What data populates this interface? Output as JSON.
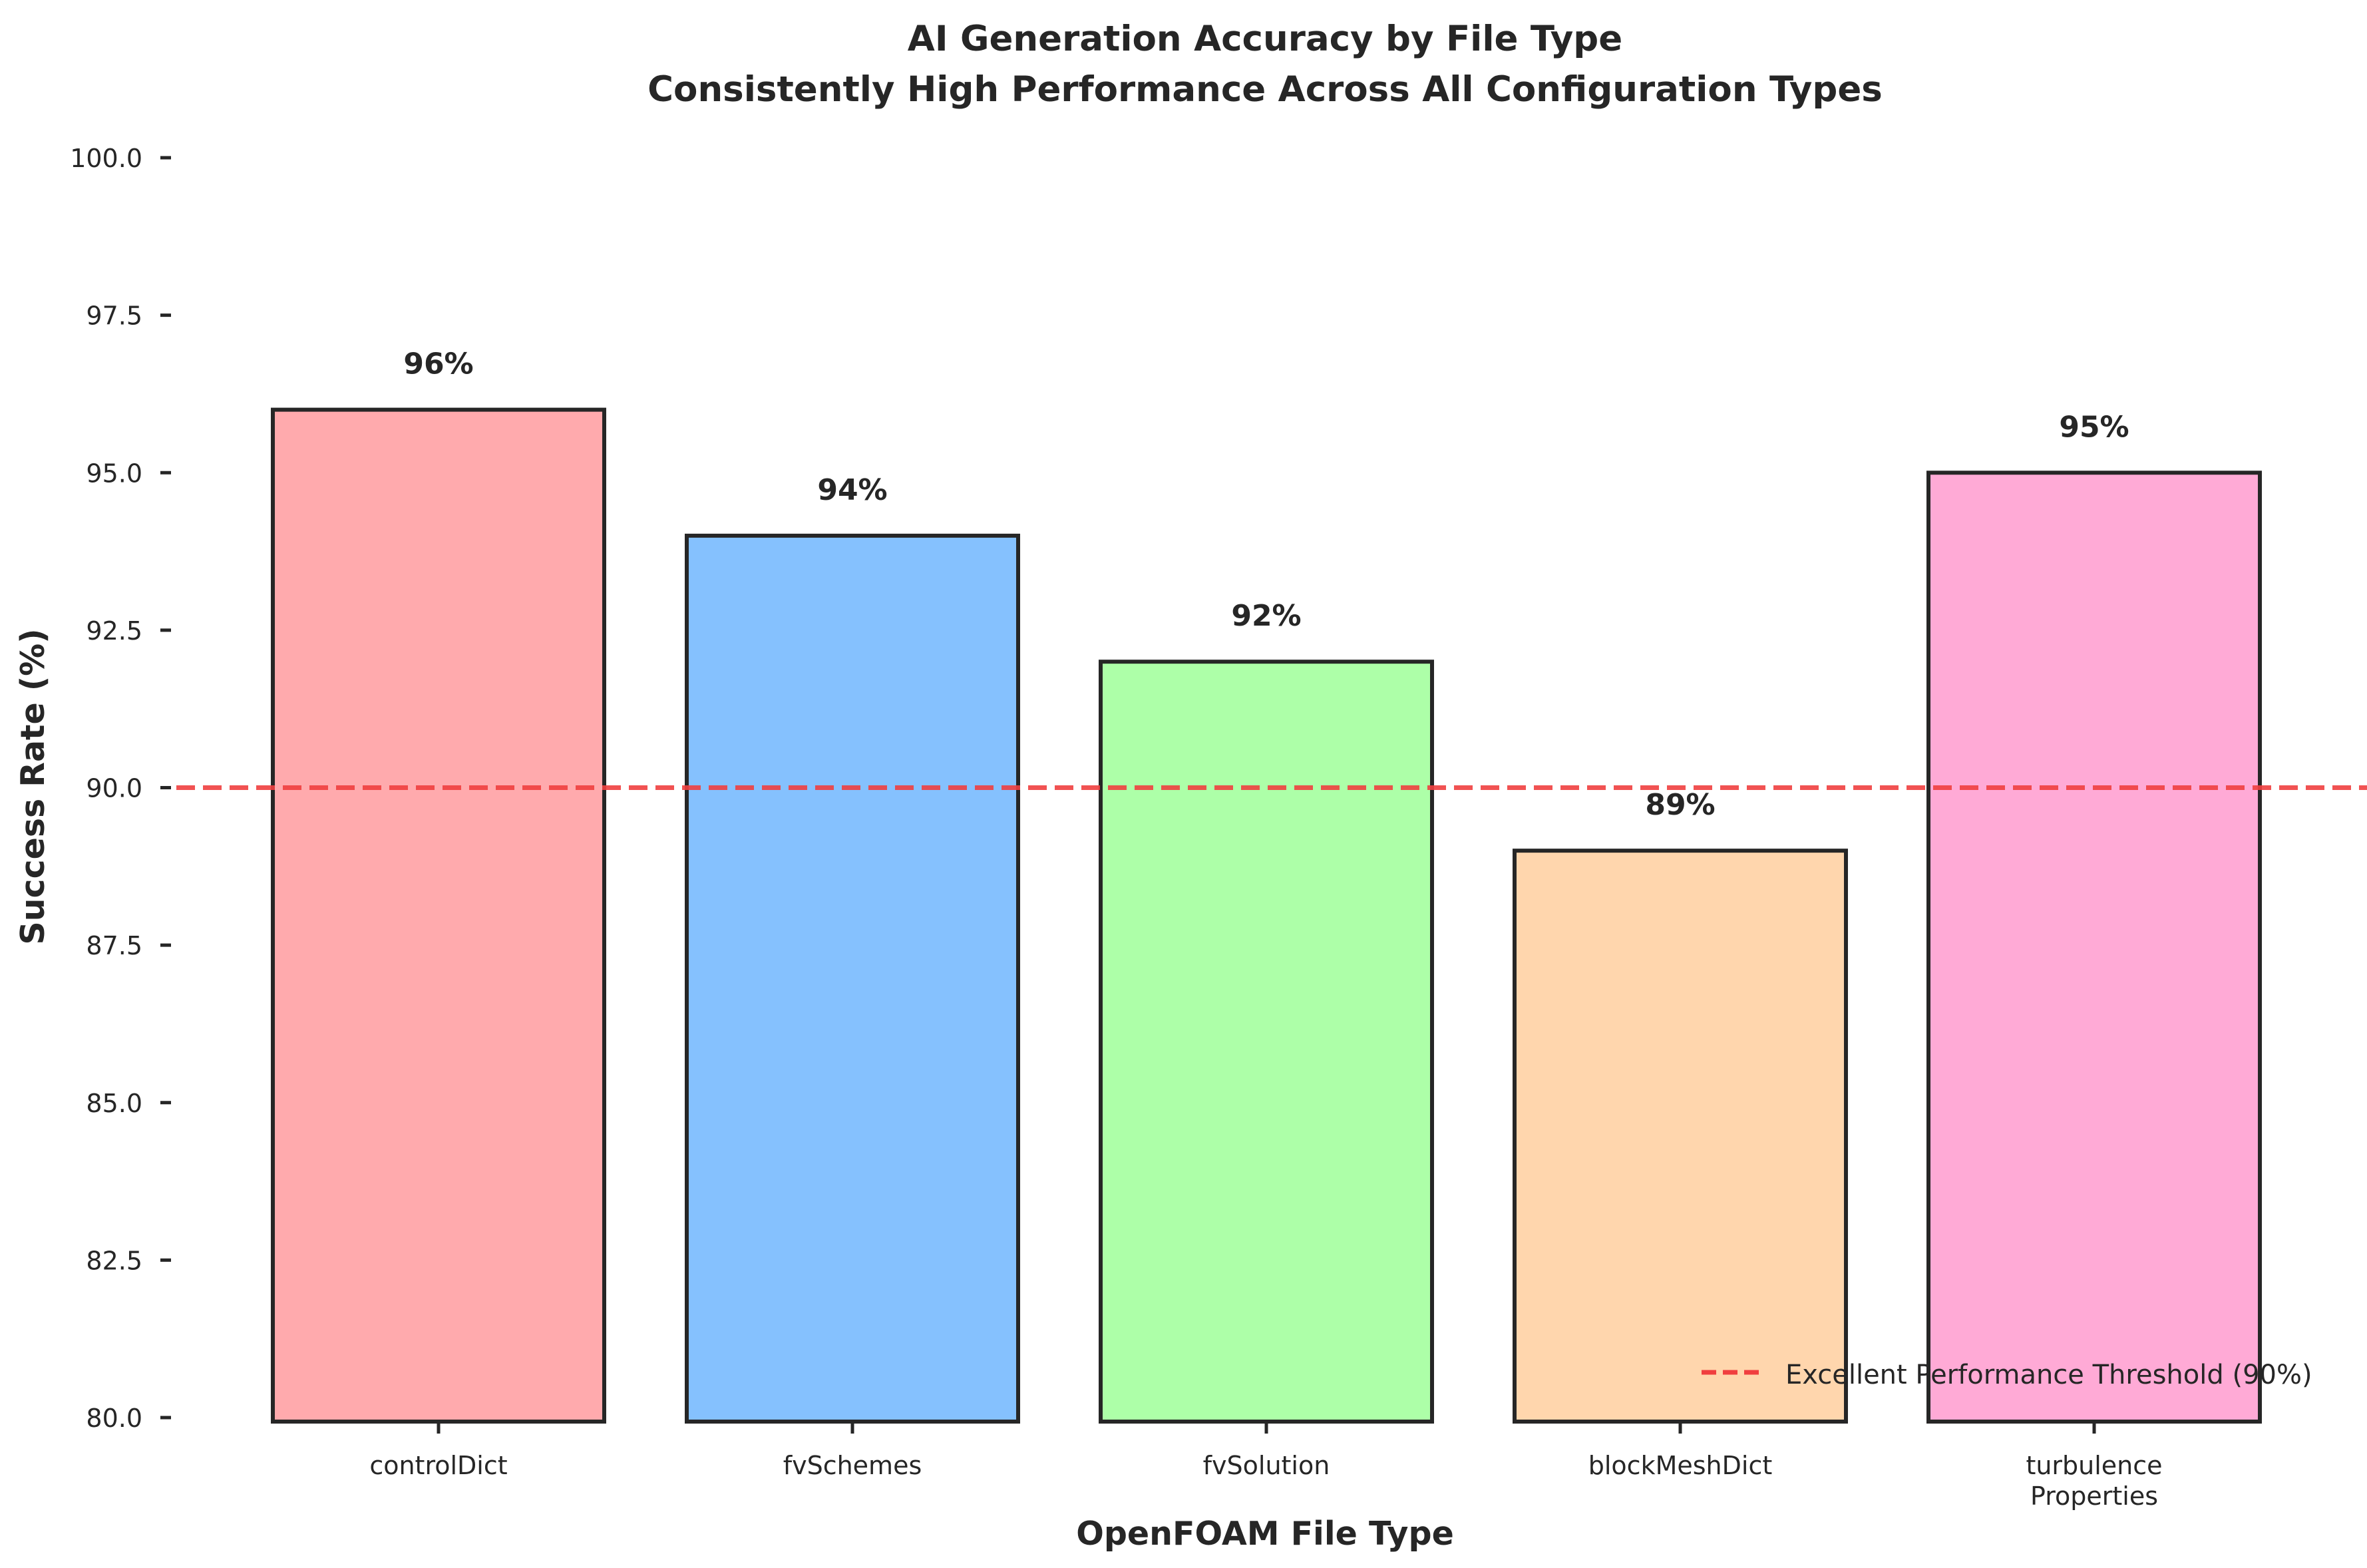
{
  "chart_data": {
    "type": "bar",
    "title": "AI Generation Accuracy by File Type",
    "subtitle": "Consistently High Performance Across All Configuration Types",
    "xlabel": "OpenFOAM File Type",
    "ylabel": "Success Rate (%)",
    "categories": [
      "controlDict",
      "fvSchemes",
      "fvSolution",
      "blockMeshDict",
      "turbulence\nProperties"
    ],
    "values": [
      96,
      94,
      92,
      89,
      95
    ],
    "data_labels": [
      "96%",
      "94%",
      "92%",
      "89%",
      "95%"
    ],
    "colors": [
      "#FFAAAD",
      "#85C1FE",
      "#ADFFA8",
      "#FFD6AD",
      "#FFAAD6"
    ],
    "edge_color": "#262626",
    "ylim": [
      80,
      100
    ],
    "yticks": [
      80.0,
      82.5,
      85.0,
      87.5,
      90.0,
      92.5,
      95.0,
      97.5,
      100.0
    ],
    "ytick_labels": [
      "80.0",
      "82.5",
      "85.0",
      "87.5",
      "90.0",
      "92.5",
      "95.0",
      "97.5",
      "100.0"
    ],
    "threshold": {
      "value": 90,
      "label": "Excellent Performance Threshold (90%)",
      "color": "#F03F3F",
      "style": "dashed"
    },
    "grid": false,
    "legend_position": "lower-right"
  }
}
